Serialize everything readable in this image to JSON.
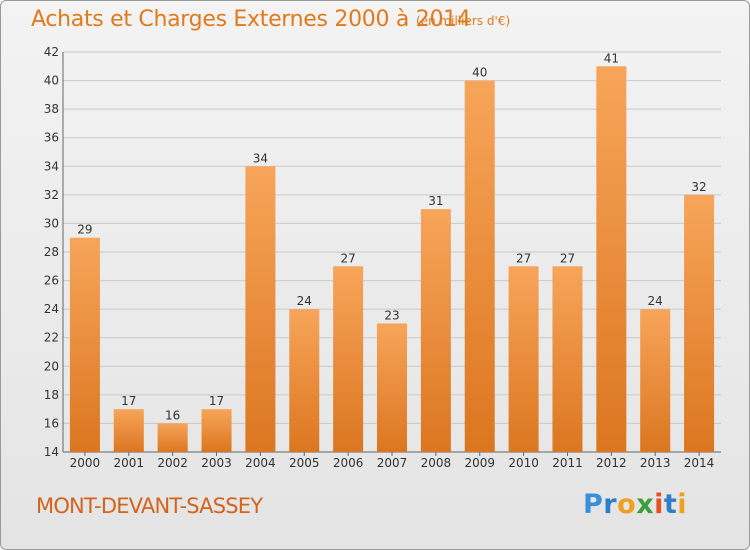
{
  "header": {
    "title": "Achats et Charges Externes 2000 à 2014",
    "subtitle": "(en milliers d'€)"
  },
  "footer": {
    "place": "MONT-DEVANT-SASSEY",
    "logo_letters": [
      "P",
      "r",
      "o",
      "x",
      "i",
      "t",
      "i"
    ]
  },
  "colors": {
    "title": "#e07a1a",
    "bar_light": "#f7a55a",
    "bar_dark": "#e07d22",
    "grid": "#c8c8c8"
  },
  "chart_data": {
    "type": "bar",
    "title": "Achats et Charges Externes 2000 à 2014",
    "subtitle": "(en milliers d'€)",
    "categories": [
      "2000",
      "2001",
      "2002",
      "2003",
      "2004",
      "2005",
      "2006",
      "2007",
      "2008",
      "2009",
      "2010",
      "2011",
      "2012",
      "2013",
      "2014"
    ],
    "values": [
      29,
      17,
      16,
      17,
      34,
      24,
      27,
      23,
      31,
      40,
      27,
      27,
      41,
      24,
      32
    ],
    "ylim": [
      14,
      42
    ],
    "yticks": [
      14,
      16,
      18,
      20,
      22,
      24,
      26,
      28,
      30,
      32,
      34,
      36,
      38,
      40,
      42
    ],
    "grid": true,
    "data_labels": true,
    "xlabel": "",
    "ylabel": ""
  }
}
